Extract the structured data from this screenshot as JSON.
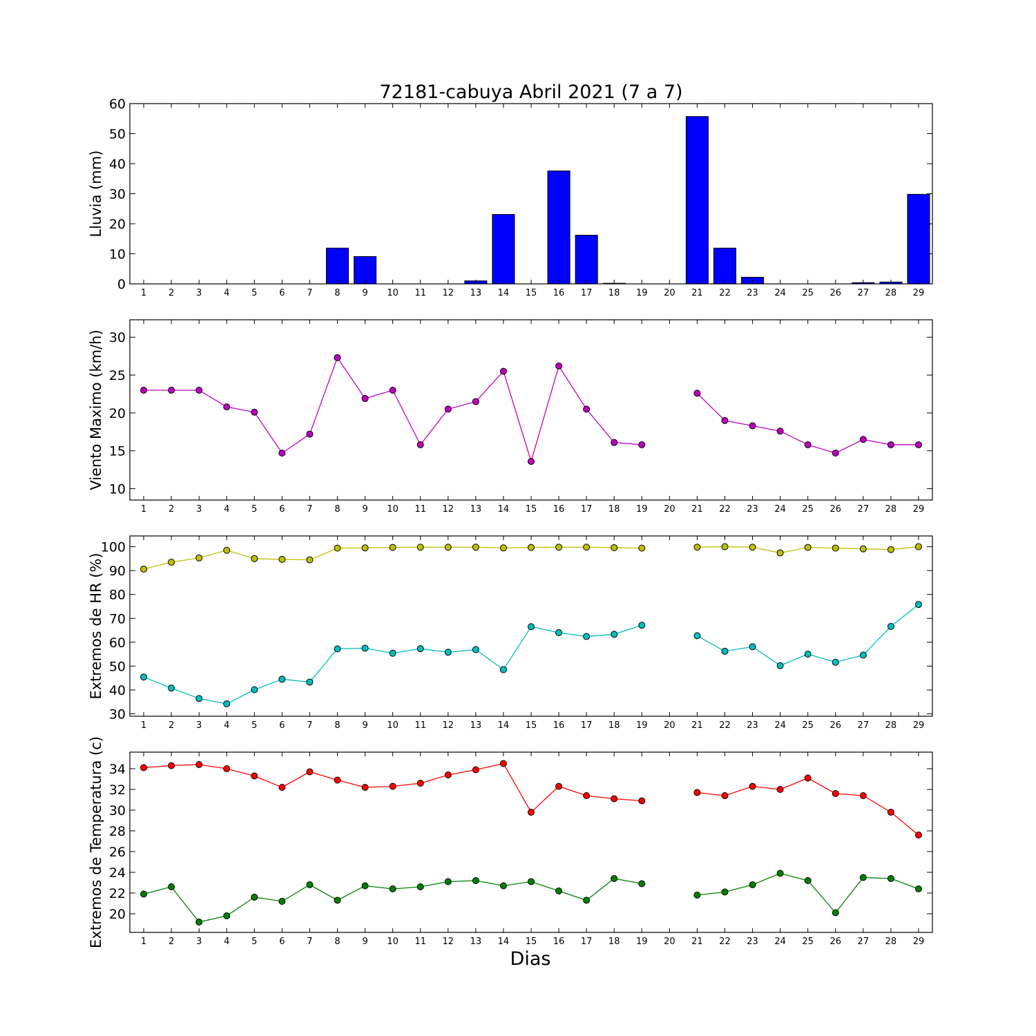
{
  "title": "72181-cabuya Abril 2021  (7 a 7)",
  "xlabel": "Dias",
  "chart_data": [
    {
      "type": "bar",
      "ylabel": "Lluvia (mm)",
      "ylim": [
        0,
        60
      ],
      "yticks": [
        0,
        10,
        20,
        30,
        40,
        50,
        60
      ],
      "x": [
        1,
        2,
        3,
        4,
        5,
        6,
        7,
        8,
        9,
        10,
        11,
        12,
        13,
        14,
        15,
        16,
        17,
        18,
        19,
        20,
        21,
        22,
        23,
        24,
        25,
        26,
        27,
        28,
        29
      ],
      "values": [
        0,
        0,
        0,
        0,
        0,
        0,
        0,
        11.9,
        9.1,
        0,
        0,
        0,
        1.0,
        23.1,
        0,
        37.6,
        16.2,
        0.2,
        0,
        0,
        55.7,
        11.9,
        2.2,
        0,
        0,
        0,
        0.4,
        0.6,
        29.8
      ],
      "color": "#0000ff"
    },
    {
      "type": "line",
      "ylabel": "Viento Maximo (km/h)",
      "ylim": [
        8.5,
        32.3
      ],
      "yticks": [
        10,
        15,
        20,
        25,
        30
      ],
      "x": [
        1,
        2,
        3,
        4,
        5,
        6,
        7,
        8,
        9,
        10,
        11,
        12,
        13,
        14,
        15,
        16,
        17,
        18,
        19,
        20,
        21,
        22,
        23,
        24,
        25,
        26,
        27,
        28,
        29
      ],
      "series": [
        {
          "color": "#bf00bf",
          "values": [
            23,
            23,
            23,
            20.8,
            20.1,
            14.7,
            17.2,
            27.3,
            21.9,
            23,
            15.8,
            20.5,
            21.5,
            25.5,
            13.6,
            26.2,
            20.5,
            16.1,
            15.8,
            null,
            22.6,
            19,
            18.3,
            17.6,
            15.8,
            14.7,
            16.5,
            15.8,
            15.8
          ]
        }
      ]
    },
    {
      "type": "line",
      "ylabel": "Extremos de HR (%)",
      "ylim": [
        29,
        104.5
      ],
      "yticks": [
        30,
        40,
        50,
        60,
        70,
        80,
        90,
        100
      ],
      "x": [
        1,
        2,
        3,
        4,
        5,
        6,
        7,
        8,
        9,
        10,
        11,
        12,
        13,
        14,
        15,
        16,
        17,
        18,
        19,
        20,
        21,
        22,
        23,
        24,
        25,
        26,
        27,
        28,
        29
      ],
      "series": [
        {
          "color": "#bfbf00",
          "values": [
            90.6,
            93.5,
            95.3,
            98.5,
            95,
            94.7,
            94.5,
            99.4,
            99.5,
            99.7,
            99.8,
            99.8,
            99.8,
            99.5,
            99.7,
            99.8,
            99.8,
            99.6,
            99.4,
            null,
            99.8,
            100,
            99.8,
            97.4,
            99.7,
            99.4,
            99.1,
            98.8,
            100
          ]
        },
        {
          "color": "#00bfbf",
          "values": [
            45.4,
            40.8,
            36.4,
            34.2,
            40.1,
            44.5,
            43.3,
            57.2,
            57.5,
            55.4,
            57.3,
            55.8,
            56.9,
            48.5,
            66.5,
            64,
            62.4,
            63.3,
            67.1,
            null,
            62.7,
            56.2,
            58.1,
            50.2,
            55,
            51.6,
            54.6,
            66.6,
            75.8
          ]
        }
      ]
    },
    {
      "type": "line",
      "ylabel": "Extremos de Temperatura (c)",
      "ylim": [
        18.2,
        35.6
      ],
      "yticks": [
        20,
        22,
        24,
        26,
        28,
        30,
        32,
        34
      ],
      "x": [
        1,
        2,
        3,
        4,
        5,
        6,
        7,
        8,
        9,
        10,
        11,
        12,
        13,
        14,
        15,
        16,
        17,
        18,
        19,
        20,
        21,
        22,
        23,
        24,
        25,
        26,
        27,
        28,
        29
      ],
      "series": [
        {
          "color": "#ff0000",
          "values": [
            34.1,
            34.3,
            34.4,
            34,
            33.3,
            32.2,
            33.7,
            32.9,
            32.2,
            32.3,
            32.6,
            33.4,
            33.9,
            34.5,
            29.8,
            32.3,
            31.4,
            31.1,
            30.9,
            null,
            31.7,
            31.4,
            32.3,
            32,
            33.1,
            31.6,
            31.4,
            29.8,
            27.6
          ]
        },
        {
          "color": "#008000",
          "values": [
            21.9,
            22.6,
            19.2,
            19.8,
            21.6,
            21.2,
            22.8,
            21.3,
            22.7,
            22.4,
            22.6,
            23.1,
            23.2,
            22.7,
            23.1,
            22.2,
            21.3,
            23.4,
            22.9,
            null,
            21.8,
            22.1,
            22.8,
            23.9,
            23.2,
            20.1,
            23.5,
            23.4,
            22.4
          ]
        }
      ]
    }
  ]
}
